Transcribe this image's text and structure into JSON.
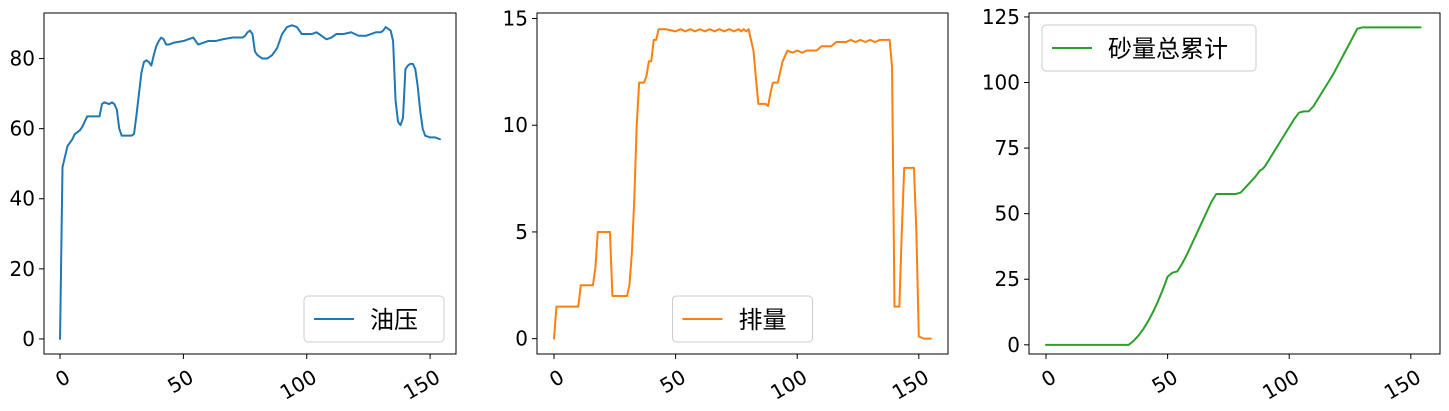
{
  "chart_data": [
    {
      "type": "line",
      "title": "",
      "xlabel": "",
      "ylabel": "",
      "xlim": [
        -6.5,
        160.5
      ],
      "ylim": [
        -4.3,
        93
      ],
      "xticks": [
        0,
        50,
        100,
        150
      ],
      "yticks": [
        0,
        20,
        40,
        60,
        80
      ],
      "grid": false,
      "legend_position": "lower-right",
      "series": [
        {
          "name": "油压",
          "color": "#1f77b4",
          "x": [
            0,
            1,
            2,
            3,
            4,
            5,
            6,
            7,
            8,
            9,
            10,
            11,
            12,
            14,
            16,
            17,
            18,
            20,
            21,
            22,
            23,
            24,
            25,
            26,
            27,
            28,
            29,
            30,
            31,
            32,
            33,
            34,
            35,
            36,
            37,
            38,
            39,
            40,
            41,
            42,
            43,
            44,
            46,
            50,
            52,
            54,
            56,
            58,
            60,
            63,
            66,
            70,
            74,
            75,
            76,
            77,
            78,
            79,
            80,
            82,
            84,
            86,
            88,
            90,
            92,
            94,
            96,
            98,
            100,
            102,
            104,
            106,
            108,
            110,
            112,
            115,
            118,
            121,
            124,
            126,
            128,
            130,
            131,
            132,
            133,
            134,
            135,
            136,
            137,
            138,
            139,
            140,
            141,
            142,
            143,
            144,
            145,
            146,
            147,
            148,
            150,
            152,
            154
          ],
          "values": [
            0,
            49,
            52,
            55,
            56,
            57,
            58.5,
            59,
            59.5,
            60.5,
            62,
            63.5,
            63.5,
            63.5,
            63.5,
            67,
            67.5,
            67,
            67.5,
            67,
            65.5,
            60,
            58,
            58,
            58,
            58,
            58,
            58.5,
            64,
            70,
            76,
            79,
            79.5,
            79,
            78,
            81,
            83.5,
            85,
            86,
            85.5,
            84,
            84,
            84.5,
            85,
            85.5,
            86,
            84,
            84.5,
            85,
            85,
            85.5,
            86,
            86,
            86.5,
            87.5,
            88,
            87,
            82,
            81,
            80,
            80,
            81,
            83,
            87,
            89,
            89.5,
            89,
            87,
            87,
            87,
            87.5,
            86.5,
            85.5,
            86,
            87,
            87,
            87.5,
            86.5,
            86.5,
            87,
            87.5,
            87.5,
            88,
            89,
            88.5,
            88,
            85,
            68,
            62,
            61,
            63,
            77,
            78,
            78.5,
            78.5,
            77,
            72,
            65,
            60,
            58,
            57.5,
            57.5,
            57
          ]
        }
      ]
    },
    {
      "type": "line",
      "title": "",
      "xlabel": "",
      "ylabel": "",
      "xlim": [
        -7,
        162
      ],
      "ylim": [
        -0.72,
        15.26
      ],
      "xticks": [
        0,
        50,
        100,
        150
      ],
      "yticks": [
        0,
        5,
        10,
        15
      ],
      "grid": false,
      "legend_position": "lower-center",
      "series": [
        {
          "name": "排量",
          "color": "#ff7f0e",
          "x": [
            0,
            1,
            2,
            5,
            8,
            9,
            10,
            11,
            12,
            13,
            14,
            15,
            16,
            17,
            18,
            19,
            22,
            23,
            24,
            26,
            28,
            29,
            30,
            31,
            32,
            33,
            34,
            35,
            36,
            37,
            38,
            39,
            40,
            41,
            42,
            43,
            44,
            46,
            50,
            52,
            54,
            56,
            58,
            60,
            62,
            64,
            66,
            68,
            70,
            72,
            74,
            76,
            77,
            78,
            79,
            80,
            82,
            84,
            86,
            87,
            88,
            89,
            90,
            92,
            94,
            96,
            98,
            100,
            102,
            104,
            106,
            108,
            110,
            112,
            114,
            116,
            118,
            120,
            122,
            124,
            126,
            128,
            130,
            132,
            134,
            136,
            137,
            138,
            139,
            140,
            141,
            142,
            143,
            144,
            145,
            146,
            147,
            148,
            149,
            150,
            152,
            154,
            155
          ],
          "values": [
            0,
            1.5,
            1.5,
            1.5,
            1.5,
            1.5,
            1.5,
            2.5,
            2.5,
            2.5,
            2.5,
            2.5,
            2.5,
            3.3,
            5,
            5,
            5,
            5,
            2,
            2,
            2,
            2,
            2,
            2.5,
            4,
            6.5,
            10,
            12,
            12,
            12,
            12.3,
            13,
            13,
            14,
            14,
            14.5,
            14.5,
            14.5,
            14.4,
            14.5,
            14.4,
            14.5,
            14.4,
            14.5,
            14.4,
            14.5,
            14.4,
            14.5,
            14.4,
            14.5,
            14.4,
            14.5,
            14.4,
            14.5,
            14.4,
            14.5,
            13.5,
            11,
            11,
            11,
            10.9,
            11.5,
            12,
            12,
            13,
            13.5,
            13.4,
            13.5,
            13.4,
            13.5,
            13.5,
            13.5,
            13.7,
            13.7,
            13.7,
            13.9,
            13.9,
            13.9,
            14,
            13.9,
            14,
            13.9,
            14,
            13.9,
            14,
            14,
            14,
            14,
            12.7,
            1.5,
            1.5,
            1.5,
            5,
            8,
            8,
            8,
            8,
            8,
            5,
            0.1,
            0,
            0,
            0
          ]
        }
      ]
    },
    {
      "type": "line",
      "title": "",
      "xlabel": "",
      "ylabel": "",
      "xlim": [
        -7,
        162
      ],
      "ylim": [
        -3.5,
        126.5
      ],
      "xticks": [
        0,
        50,
        100,
        150
      ],
      "yticks": [
        0,
        25,
        50,
        75,
        100,
        125
      ],
      "grid": false,
      "legend_position": "upper-left",
      "series": [
        {
          "name": "砂量总累计",
          "color": "#2ca02c",
          "x": [
            0,
            10,
            20,
            30,
            34,
            36,
            38,
            40,
            42,
            44,
            46,
            48,
            50,
            52,
            54,
            56,
            58,
            60,
            62,
            64,
            66,
            68,
            70,
            72,
            74,
            76,
            78,
            80,
            82,
            84,
            86,
            88,
            89,
            90,
            92,
            94,
            96,
            98,
            100,
            102,
            104,
            106,
            108,
            110,
            112,
            114,
            116,
            118,
            120,
            122,
            124,
            126,
            128,
            130,
            131,
            132,
            134,
            140,
            150,
            154
          ],
          "values": [
            0,
            0,
            0,
            0,
            0,
            1.5,
            3.5,
            6,
            9,
            12.5,
            16.5,
            21,
            26,
            27.5,
            28,
            31,
            34.5,
            38.5,
            42.5,
            46.5,
            50.5,
            54.5,
            57.5,
            57.5,
            57.5,
            57.5,
            57.5,
            58,
            60,
            62,
            64,
            66.5,
            67,
            68,
            71,
            74,
            77,
            80,
            83,
            86,
            88.5,
            89,
            89,
            91,
            94,
            97,
            100,
            103,
            106.5,
            110,
            113.5,
            117,
            120.5,
            121,
            121,
            121,
            121,
            121,
            121,
            121
          ]
        }
      ]
    }
  ]
}
